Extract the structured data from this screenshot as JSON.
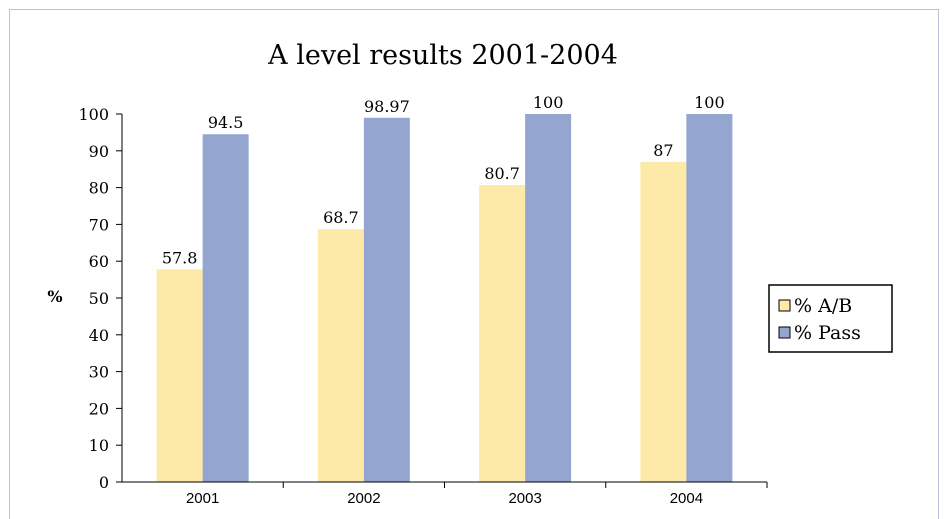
{
  "chart_data": {
    "type": "bar",
    "title": "A level results 2001-2004",
    "ylabel": "%",
    "xlabel": "",
    "categories": [
      "2001",
      "2002",
      "2003",
      "2004"
    ],
    "series": [
      {
        "name": "% A/B",
        "values": [
          57.8,
          68.7,
          80.7,
          87
        ],
        "labels": [
          "57.8",
          "68.7",
          "80.7",
          "87"
        ],
        "color": "#fde9a8"
      },
      {
        "name": "% Pass",
        "values": [
          94.5,
          98.97,
          100,
          100
        ],
        "labels": [
          "94.5",
          "98.97",
          "100",
          "100"
        ],
        "color": "#94a5d0"
      }
    ],
    "ylim": [
      0,
      100
    ],
    "yticks": [
      0,
      10,
      20,
      30,
      40,
      50,
      60,
      70,
      80,
      90,
      100
    ],
    "grid": false,
    "legend": "right"
  }
}
